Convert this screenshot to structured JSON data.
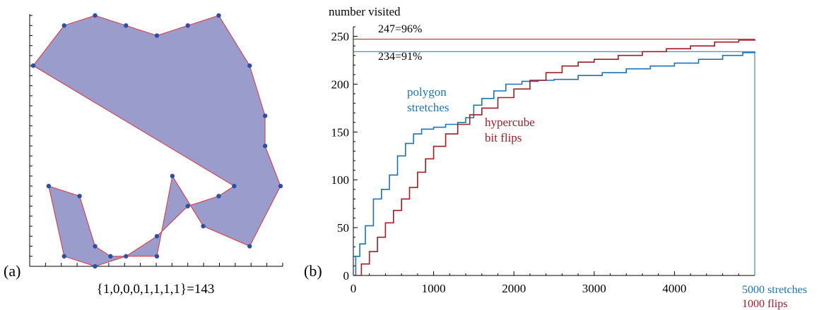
{
  "panel_a": {
    "label": "(a)",
    "caption": "{1,0,0,0,1,1,1,1}=143",
    "fill_color": "#9a9ccb",
    "edge_color": "#e0303a",
    "vertex_color": "#2b4fa8"
  },
  "panel_b": {
    "label": "(b)",
    "ylabel": "number visited",
    "polygon_annotation": [
      "polygon",
      "stretches"
    ],
    "hypercube_annotation": [
      "hypercube",
      "bit flips"
    ],
    "line_247_label": "247=96%",
    "line_234_label": "234=91%",
    "x_end_label_1": "5000 stretches",
    "x_end_label_2": "1000 flips",
    "colors": {
      "polygon": "#1a73b5",
      "hypercube": "#a01c24"
    }
  },
  "chart_data": [
    {
      "type": "polygon",
      "title": "",
      "caption": "{1,0,0,0,1,1,1,1}=143",
      "vertices": [
        [
          0,
          5
        ],
        [
          2,
          1
        ],
        [
          4,
          0
        ],
        [
          6,
          1
        ],
        [
          8,
          2
        ],
        [
          10,
          1
        ],
        [
          12,
          0
        ],
        [
          14,
          5
        ],
        [
          15,
          10
        ],
        [
          15,
          13
        ],
        [
          16,
          17
        ],
        [
          14,
          23
        ],
        [
          11,
          21
        ],
        [
          9,
          16
        ],
        [
          8,
          24
        ],
        [
          5,
          24
        ],
        [
          4,
          23
        ],
        [
          3,
          18
        ],
        [
          1,
          17
        ],
        [
          2,
          24
        ],
        [
          4,
          25
        ],
        [
          6,
          24
        ],
        [
          8,
          22
        ],
        [
          10,
          19
        ],
        [
          12,
          18
        ],
        [
          13,
          17
        ]
      ],
      "xlim": [
        0,
        16
      ],
      "ylim": [
        0,
        25
      ]
    },
    {
      "type": "line",
      "title": "",
      "xlabel": "",
      "ylabel": "number visited",
      "xlim": [
        0,
        5000
      ],
      "ylim": [
        0,
        260
      ],
      "xticks": [
        0,
        1000,
        2000,
        3000,
        4000
      ],
      "yticks": [
        0,
        50,
        100,
        150,
        200,
        250
      ],
      "reference_lines": [
        {
          "y": 247,
          "label": "247=96%"
        },
        {
          "y": 234,
          "label": "234=91%"
        }
      ],
      "series": [
        {
          "name": "polygon stretches",
          "x": [
            0,
            30,
            80,
            150,
            250,
            350,
            450,
            550,
            650,
            750,
            850,
            1000,
            1150,
            1300,
            1400,
            1500,
            1600,
            1750,
            1900,
            2100,
            2300,
            2500,
            2800,
            3100,
            3400,
            3700,
            4000,
            4300,
            4600,
            4850,
            5000
          ],
          "y": [
            0,
            20,
            33,
            52,
            80,
            90,
            105,
            125,
            138,
            148,
            153,
            155,
            158,
            160,
            165,
            178,
            185,
            193,
            200,
            203,
            204,
            205,
            209,
            212,
            216,
            219,
            222,
            226,
            230,
            233,
            234
          ]
        },
        {
          "name": "hypercube bit flips",
          "x": [
            0,
            100,
            200,
            300,
            400,
            500,
            600,
            700,
            800,
            900,
            1000,
            1150,
            1300,
            1450,
            1600,
            1800,
            2000,
            2200,
            2400,
            2600,
            2800,
            3000,
            3300,
            3600,
            3900,
            4200,
            4500,
            4800,
            5000
          ],
          "y": [
            0,
            12,
            25,
            40,
            55,
            68,
            80,
            92,
            108,
            122,
            135,
            148,
            158,
            168,
            175,
            186,
            195,
            204,
            212,
            219,
            223,
            226,
            230,
            234,
            237,
            240,
            244,
            246,
            247
          ]
        }
      ]
    }
  ]
}
